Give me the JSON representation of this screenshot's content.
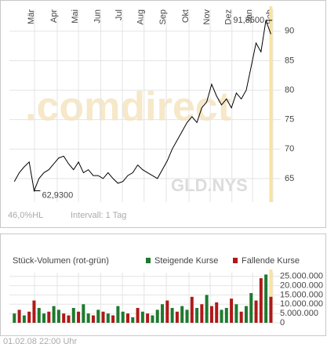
{
  "chart_data": [
    {
      "type": "line",
      "watermark": [
        ".comdirect",
        "GLD.NYS"
      ],
      "info": [
        "46,0%HL",
        "Intervall: 1 Tag"
      ],
      "x": [
        0,
        1,
        2,
        3,
        4,
        5,
        6,
        7,
        8,
        9,
        10,
        11,
        12,
        13,
        14,
        15,
        16,
        17,
        18,
        19,
        20,
        21,
        22,
        23,
        24,
        25,
        26,
        27,
        28,
        29,
        30,
        31,
        32,
        33,
        34,
        35,
        36,
        37,
        38,
        39,
        40,
        41,
        42,
        43,
        44,
        45,
        46,
        47,
        48,
        49,
        50,
        51,
        52
      ],
      "values": [
        64.5,
        66,
        67,
        67.8,
        62.93,
        65,
        66,
        66.5,
        67.5,
        68.5,
        68.8,
        67.5,
        66.5,
        67.8,
        66,
        66.5,
        65.5,
        65.5,
        65,
        66,
        65,
        64.2,
        64.5,
        65.5,
        66,
        67.3,
        66.5,
        66,
        65.5,
        65,
        66.5,
        68,
        70,
        71.5,
        73,
        74.5,
        75.5,
        74.5,
        77,
        78,
        81,
        79,
        77.5,
        78.5,
        77,
        79.5,
        78.5,
        80,
        84,
        88,
        86.5,
        91.85,
        89.5
      ],
      "color": "#000000",
      "xlim": [
        -1,
        54
      ],
      "ylim": [
        61,
        93.7
      ],
      "xticks": [
        {
          "value": 4.1,
          "label": "Mär"
        },
        {
          "value": 8.7,
          "label": "Apr"
        },
        {
          "value": 13,
          "label": "Mai"
        },
        {
          "value": 17.5,
          "label": "Jun"
        },
        {
          "value": 21.9,
          "label": "Jul"
        },
        {
          "value": 26.3,
          "label": "Aug"
        },
        {
          "value": 30.8,
          "label": "Sep"
        },
        {
          "value": 35.4,
          "label": "Okt"
        },
        {
          "value": 39.7,
          "label": "Nov"
        },
        {
          "value": 44.1,
          "label": "Dez"
        },
        {
          "value": 48.3,
          "label": "Jan"
        },
        {
          "value": 52.4,
          "label": "Feb"
        }
      ],
      "yticks": [
        65,
        70,
        75,
        80,
        85,
        90
      ],
      "grid": true,
      "annotations": [
        {
          "text": "62,9300",
          "x": 4,
          "y": 62.93
        },
        {
          "text": "91,8500",
          "x": 51,
          "y": 91.85
        }
      ]
    },
    {
      "type": "bar",
      "title": "Stück-Volumen (rot-grün)",
      "footer": "01.02.08   22:00 Uhr",
      "x": [
        0,
        1,
        2,
        3,
        4,
        5,
        6,
        7,
        8,
        9,
        10,
        11,
        12,
        13,
        14,
        15,
        16,
        17,
        18,
        19,
        20,
        21,
        22,
        23,
        24,
        25,
        26,
        27,
        28,
        29,
        30,
        31,
        32,
        33,
        34,
        35,
        36,
        37,
        38,
        39,
        40,
        41,
        42,
        43,
        44,
        45,
        46,
        47,
        48,
        49,
        50,
        51,
        52
      ],
      "series": [
        {
          "name": "Steigende Kurse",
          "color": "#1e7a2e",
          "values": [
            5000000,
            null,
            4000000,
            null,
            null,
            8000000,
            5000000,
            null,
            9000000,
            7000000,
            null,
            null,
            8000000,
            null,
            10000000,
            5000000,
            null,
            7000000,
            null,
            5000000,
            null,
            9000000,
            6000000,
            null,
            3000000,
            null,
            6000000,
            null,
            4000000,
            7000000,
            10000000,
            null,
            8000000,
            null,
            9000000,
            7000000,
            null,
            8000000,
            null,
            15000000,
            null,
            null,
            7000000,
            8000000,
            null,
            10000000,
            null,
            9000000,
            16000000,
            null,
            null,
            26000000,
            null
          ]
        },
        {
          "name": "Fallende Kurse",
          "color": "#b01818",
          "values": [
            null,
            7000000,
            null,
            6000000,
            12000000,
            null,
            null,
            6000000,
            null,
            null,
            5000000,
            4000000,
            null,
            6000000,
            null,
            null,
            4000000,
            null,
            6000000,
            null,
            4000000,
            null,
            null,
            5000000,
            null,
            8000000,
            null,
            5000000,
            null,
            null,
            null,
            12000000,
            null,
            6000000,
            null,
            null,
            14000000,
            null,
            10000000,
            null,
            9000000,
            11000000,
            null,
            null,
            13000000,
            null,
            6000000,
            null,
            null,
            12000000,
            24000000,
            null,
            14000000
          ]
        }
      ],
      "xlim": [
        -1,
        54
      ],
      "ylim": [
        0,
        27000000
      ],
      "yticks": [
        0,
        {
          "value": 5000000,
          "label": "5.000.000"
        },
        {
          "value": 10000000,
          "label": "10.000.000"
        },
        {
          "value": 15000000,
          "label": "15.000.000"
        },
        {
          "value": 20000000,
          "label": "20.000.000"
        },
        {
          "value": 25000000,
          "label": "25.000.000"
        }
      ],
      "grid": true
    }
  ]
}
